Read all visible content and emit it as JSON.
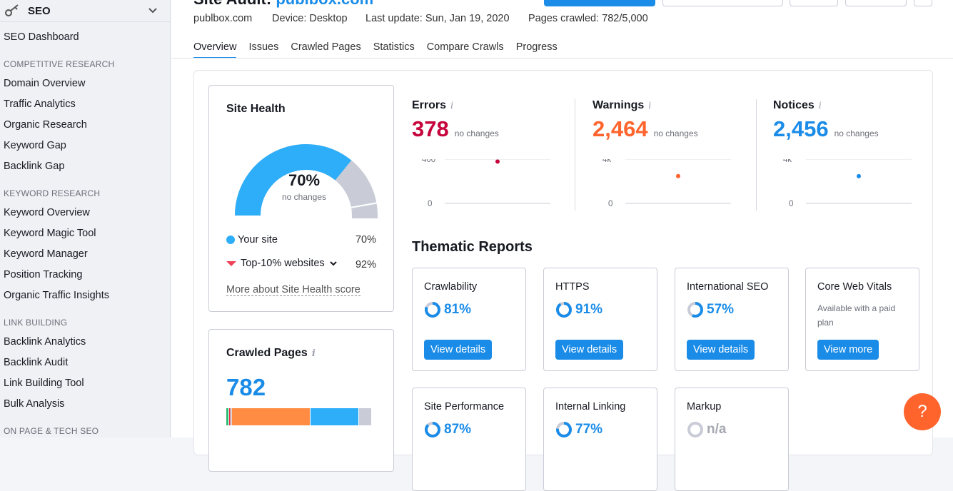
{
  "sidebar": {
    "title": "SEO",
    "items": {
      "dashboard": "SEO Dashboard",
      "competitive_header": "COMPETITIVE RESEARCH",
      "domain_overview": "Domain Overview",
      "traffic_analytics": "Traffic Analytics",
      "organic_research": "Organic Research",
      "keyword_gap": "Keyword Gap",
      "backlink_gap": "Backlink Gap",
      "keyword_header": "KEYWORD RESEARCH",
      "keyword_overview": "Keyword Overview",
      "keyword_magic": "Keyword Magic Tool",
      "keyword_manager": "Keyword Manager",
      "position_tracking": "Position Tracking",
      "organic_traffic_insights": "Organic Traffic Insights",
      "link_header": "LINK BUILDING",
      "backlink_analytics": "Backlink Analytics",
      "backlink_audit": "Backlink Audit",
      "link_building_tool": "Link Building Tool",
      "bulk_analysis": "Bulk Analysis",
      "onpage_header": "ON PAGE & TECH SEO"
    }
  },
  "header": {
    "title_prefix": "Site Audit:",
    "title_domain": "publbox.com",
    "domain": "publbox.com",
    "device": "Device: Desktop",
    "last_update": "Last update: Sun, Jan 19, 2020",
    "pages_crawled": "Pages crawled: 782/5,000"
  },
  "tabs": [
    "Overview",
    "Issues",
    "Crawled Pages",
    "Statistics",
    "Compare Crawls",
    "Progress"
  ],
  "site_health": {
    "title": "Site Health",
    "percent": "70%",
    "change": "no changes",
    "your_site_label": "Your site",
    "your_site_value": "70%",
    "top10_label": "Top-10% websites",
    "top10_value": "92%",
    "link": "More about Site Health score",
    "gauge_fraction": 0.7,
    "top10_fraction": 0.92,
    "colors": {
      "site": "#2eaef8",
      "top": "#c9ccd6",
      "marker": "#ef4256"
    }
  },
  "crawled_pages": {
    "title": "Crawled Pages",
    "value": "782",
    "segments": [
      {
        "color": "#2dbd74",
        "fraction": 0.012
      },
      {
        "color": "#ee2b4e",
        "fraction": 0.012
      },
      {
        "color": "#8c1c2d",
        "fraction": 0.01
      },
      {
        "color": "#ff8c42",
        "fraction": 0.525
      },
      {
        "color": "#2eaef8",
        "fraction": 0.32
      },
      {
        "color": "#c9ccd6",
        "fraction": 0.09
      }
    ]
  },
  "metrics": [
    {
      "label": "Errors",
      "value": "378",
      "change": "no changes",
      "color": "#c6053c",
      "ymax": "400",
      "ymin": "0",
      "point_fraction": 0.945
    },
    {
      "label": "Warnings",
      "value": "2,464",
      "change": "no changes",
      "color": "#ff642d",
      "ymax": "4k",
      "ymin": "0",
      "point_fraction": 0.616
    },
    {
      "label": "Notices",
      "value": "2,456",
      "change": "no changes",
      "color": "#1a8ce8",
      "ymax": "4k",
      "ymin": "0",
      "point_fraction": 0.614
    }
  ],
  "thematic": {
    "title": "Thematic Reports",
    "reports": [
      {
        "name": "Crawlability",
        "pct": "81%",
        "fraction": 0.81,
        "button": "View details"
      },
      {
        "name": "HTTPS",
        "pct": "91%",
        "fraction": 0.91,
        "button": "View details"
      },
      {
        "name": "International SEO",
        "pct": "57%",
        "fraction": 0.57,
        "button": "View details"
      },
      {
        "name": "Core Web Vitals",
        "note": "Available with a paid plan",
        "button": "View more"
      },
      {
        "name": "Site Performance",
        "pct": "87%",
        "fraction": 0.87
      },
      {
        "name": "Internal Linking",
        "pct": "77%",
        "fraction": 0.77
      },
      {
        "name": "Markup",
        "pct": "n/a",
        "fraction": 0
      }
    ]
  },
  "help": {
    "label": "?"
  }
}
